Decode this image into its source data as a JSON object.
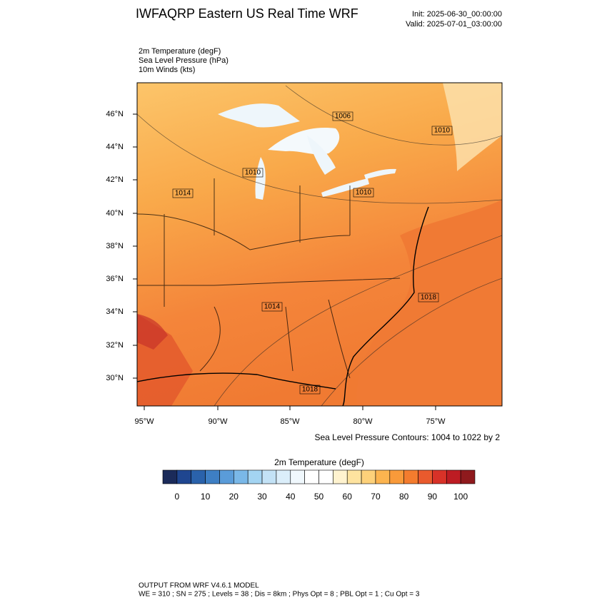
{
  "header": {
    "title": "IWFAQRP Eastern US Real Time WRF",
    "init": "Init: 2025-06-30_00:00:00",
    "valid": "Valid: 2025-07-01_03:00:00"
  },
  "fields": [
    "2m Temperature   (degF)",
    "Sea Level Pressure   (hPa)",
    "10m Winds   (kts)"
  ],
  "map": {
    "lat_labels": [
      "46°N",
      "44°N",
      "42°N",
      "40°N",
      "38°N",
      "36°N",
      "34°N",
      "32°N",
      "30°N"
    ],
    "lon_labels": [
      "95°W",
      "90°W",
      "85°W",
      "80°W",
      "75°W"
    ],
    "contour_labels": [
      "1006",
      "1010",
      "1010",
      "1014",
      "1010",
      "1018",
      "1014",
      "1018"
    ],
    "contour_note": "Sea Level Pressure Contours: 1004 to 1022 by 2"
  },
  "colorbar": {
    "title": "2m Temperature  (degF)",
    "xlim": [
      -5,
      105
    ],
    "ticks": [
      0,
      10,
      20,
      30,
      40,
      50,
      60,
      70,
      80,
      90,
      100
    ],
    "colors": [
      "#1b2b5a",
      "#1f4690",
      "#2a62ab",
      "#3e7fc4",
      "#5a9cd9",
      "#7ab8e8",
      "#a3d4f2",
      "#c3e2f6",
      "#dbeefa",
      "#f0f8fd",
      "#ffffff",
      "#ffffff",
      "#fff3cf",
      "#fee39f",
      "#fdd17a",
      "#fcb44f",
      "#f99a3a",
      "#f47c2e",
      "#e95a2d",
      "#d83228",
      "#bd1c23",
      "#8f1a1d"
    ]
  },
  "footer": {
    "line1": "OUTPUT FROM WRF V4.6.1 MODEL",
    "line2": "WE = 310 ; SN = 275 ; Levels = 38 ; Dis = 8km ; Phys Opt = 8 ; PBL Opt = 1 ; Cu Opt = 3"
  }
}
